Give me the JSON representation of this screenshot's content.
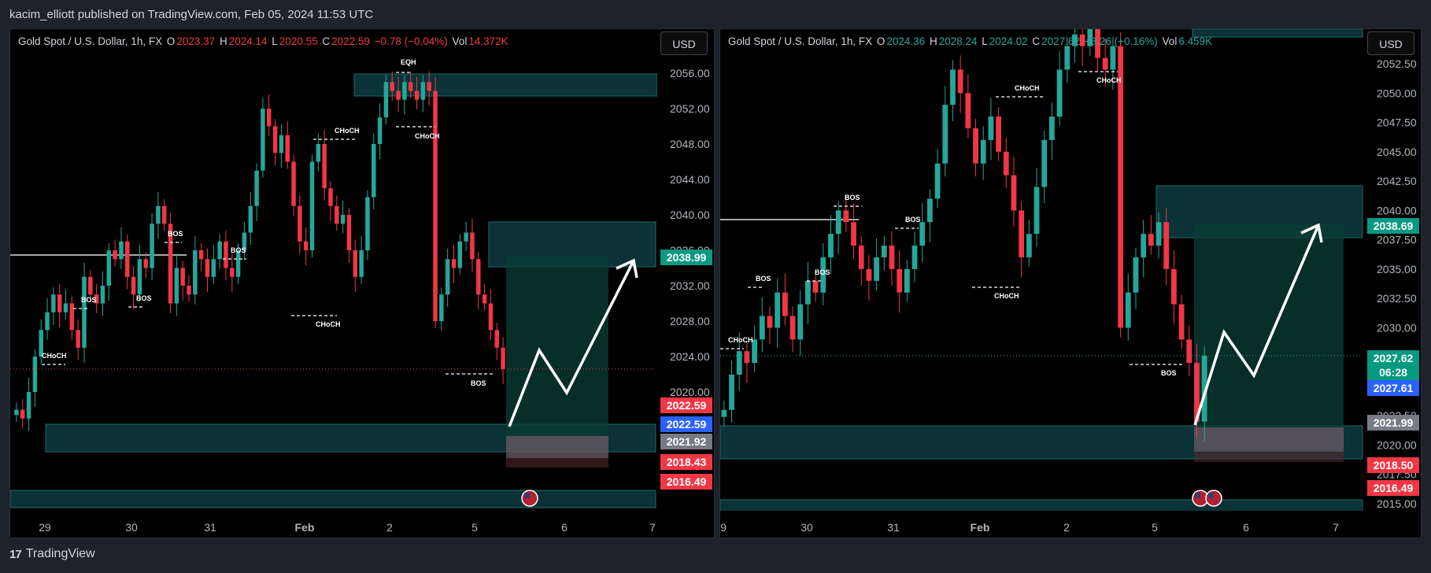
{
  "publisher": "kacim_elliott published on TradingView.com, Feb 05, 2024 11:53 UTC",
  "footer_brand": "TradingView",
  "colors": {
    "up": "#26a69a",
    "down": "#f23645",
    "zone": "#0f4a4a",
    "bg": "#000000"
  },
  "charts": [
    {
      "legend": {
        "symbol": "Gold Spot / U.S. Dollar, 1h, FX",
        "o": "2023.37",
        "h": "2024.14",
        "l": "2020.55",
        "c": "2022.59",
        "chg": "−0.78 (−0.04%)",
        "vol": "14.372K",
        "direction": "down"
      },
      "currency": "USD",
      "y_ticks": [
        "2056.00",
        "2052.00",
        "2048.00",
        "2044.00",
        "2040.00",
        "2036.00",
        "2032.00",
        "2028.00",
        "2024.00",
        "2020.00",
        "2016.00"
      ],
      "x_ticks": [
        "29",
        "30",
        "31",
        "Feb",
        "2",
        "5",
        "6",
        "7"
      ],
      "price_labels": [
        {
          "text": "2038.99",
          "color": "#089981"
        },
        {
          "text": "2022.59",
          "color": "#f23645"
        },
        {
          "text": "2022.59",
          "color": "#2962ff"
        },
        {
          "text": "2021.92",
          "color": "#787b86"
        },
        {
          "text": "2018.43",
          "color": "#f23645"
        },
        {
          "text": "2016.49",
          "color": "#f23645"
        }
      ],
      "annotations": [
        "CHoCH",
        "BOS",
        "BOS",
        "BOS",
        "BOS",
        "CHoCH",
        "CHoCH",
        "EQH",
        "CHoCH",
        "BOS"
      ],
      "chart_data": {
        "type": "candlestick",
        "ylim": [
          2014.0,
          2060.0
        ],
        "close_path": [
          2018,
          2017,
          2020,
          2024,
          2027,
          2029,
          2031,
          2029,
          2030,
          2027,
          2025,
          2033,
          2031,
          2030,
          2032,
          2036,
          2035,
          2037,
          2033,
          2031,
          2035,
          2034,
          2039,
          2041,
          2039,
          2030,
          2034,
          2032,
          2031,
          2036,
          2035,
          2033,
          2035,
          2037,
          2034,
          2033,
          2036,
          2038,
          2041,
          2045,
          2052,
          2050,
          2047,
          2049,
          2046,
          2041,
          2037,
          2036,
          2046,
          2048,
          2043,
          2041,
          2039,
          2040,
          2036,
          2033,
          2036,
          2042,
          2048,
          2051,
          2055,
          2054,
          2053,
          2055,
          2054,
          2053,
          2055,
          2054,
          2028,
          2031,
          2035,
          2034,
          2037,
          2038,
          2035,
          2031,
          2030,
          2027,
          2025,
          2022.59
        ]
      }
    },
    {
      "legend": {
        "symbol": "Gold Spot / U.S. Dollar, 1h, FX",
        "o": "2024.36",
        "h": "2028.24",
        "l": "2024.02",
        "c": "2027.62",
        "chg": "+3.26 (+0.16%)",
        "vol": "6.459K",
        "direction": "up"
      },
      "currency": "USD",
      "y_ticks": [
        "2052.50",
        "2050.00",
        "2047.50",
        "2045.00",
        "2042.50",
        "2040.00",
        "2037.50",
        "2035.00",
        "2032.50",
        "2030.00",
        "2027.50",
        "2025.00",
        "2022.50",
        "2020.00",
        "2017.50",
        "2015.00"
      ],
      "x_ticks": [
        "9",
        "30",
        "31",
        "Feb",
        "2",
        "5",
        "6",
        "7"
      ],
      "price_labels": [
        {
          "text": "2038.69",
          "color": "#089981"
        },
        {
          "text": "2027.62",
          "color": "#089981"
        },
        {
          "text": "06:28",
          "color": "#089981"
        },
        {
          "text": "2027.61",
          "color": "#2962ff"
        },
        {
          "text": "2021.99",
          "color": "#787b86"
        },
        {
          "text": "2018.50",
          "color": "#f23645"
        },
        {
          "text": "2016.49",
          "color": "#f23645"
        }
      ],
      "annotations": [
        "CHoCH",
        "BOS",
        "BOS",
        "BOS",
        "BOS",
        "CHoCH",
        "CHoCH",
        "CHoCH",
        "BOS"
      ],
      "chart_data": {
        "type": "candlestick",
        "ylim": [
          2014.5,
          2054.0
        ],
        "close_path": [
          2023,
          2026,
          2028,
          2027,
          2029,
          2031,
          2030,
          2033,
          2031,
          2029,
          2032,
          2034,
          2033,
          2036,
          2038,
          2040,
          2039,
          2037,
          2035,
          2034,
          2036,
          2037,
          2035,
          2033,
          2035,
          2037,
          2039,
          2041,
          2044,
          2049,
          2052,
          2050,
          2047,
          2044,
          2046,
          2048,
          2045,
          2043,
          2040,
          2036,
          2038,
          2042,
          2046,
          2048,
          2052,
          2054,
          2055,
          2054,
          2056,
          2053,
          2052,
          2054,
          2030,
          2033,
          2036,
          2038,
          2037,
          2039,
          2035,
          2032,
          2029,
          2027,
          2022,
          2027.62
        ]
      }
    }
  ]
}
